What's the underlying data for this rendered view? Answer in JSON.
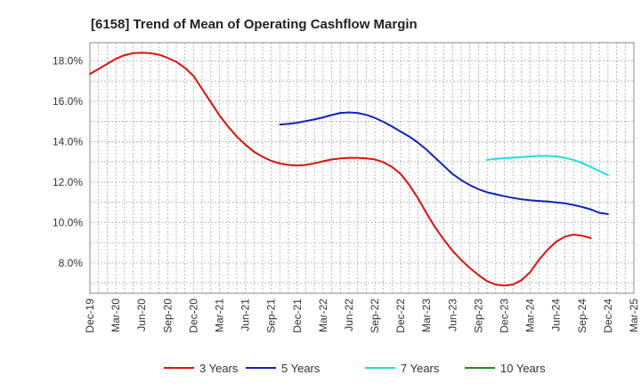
{
  "chart_data": {
    "type": "line",
    "title": "[6158]  Trend of Mean of Operating Cashflow Margin",
    "xlabel": "",
    "ylabel": "",
    "x_ticks": [
      "Dec-19",
      "Mar-20",
      "Jun-20",
      "Sep-20",
      "Dec-20",
      "Mar-21",
      "Jun-21",
      "Sep-21",
      "Dec-21",
      "Mar-22",
      "Jun-22",
      "Sep-22",
      "Dec-22",
      "Mar-23",
      "Jun-23",
      "Sep-23",
      "Dec-23",
      "Mar-24",
      "Jun-24",
      "Sep-24",
      "Dec-24",
      "Mar-25"
    ],
    "y_ticks": [
      "8.0%",
      "10.0%",
      "12.0%",
      "14.0%",
      "16.0%",
      "18.0%"
    ],
    "ylim": [
      6.5,
      18.9
    ],
    "grid": true,
    "legend_position": "bottom",
    "series": [
      {
        "name": "3 Years",
        "color": "#dd1111",
        "points": [
          [
            "Dec-19",
            17.35
          ],
          [
            "Jan-20",
            17.6
          ],
          [
            "Feb-20",
            17.85
          ],
          [
            "Mar-20",
            18.1
          ],
          [
            "Apr-20",
            18.28
          ],
          [
            "May-20",
            18.38
          ],
          [
            "Jun-20",
            18.4
          ],
          [
            "Jul-20",
            18.38
          ],
          [
            "Aug-20",
            18.3
          ],
          [
            "Sep-20",
            18.15
          ],
          [
            "Oct-20",
            17.95
          ],
          [
            "Nov-20",
            17.65
          ],
          [
            "Dec-20",
            17.25
          ],
          [
            "Jan-21",
            16.6
          ],
          [
            "Feb-21",
            15.95
          ],
          [
            "Mar-21",
            15.3
          ],
          [
            "Apr-21",
            14.75
          ],
          [
            "May-21",
            14.25
          ],
          [
            "Jun-21",
            13.85
          ],
          [
            "Jul-21",
            13.5
          ],
          [
            "Aug-21",
            13.25
          ],
          [
            "Sep-21",
            13.05
          ],
          [
            "Oct-21",
            12.92
          ],
          [
            "Nov-21",
            12.85
          ],
          [
            "Dec-21",
            12.82
          ],
          [
            "Jan-22",
            12.85
          ],
          [
            "Feb-22",
            12.93
          ],
          [
            "Mar-22",
            13.03
          ],
          [
            "Apr-22",
            13.12
          ],
          [
            "May-22",
            13.17
          ],
          [
            "Jun-22",
            13.2
          ],
          [
            "Jul-22",
            13.2
          ],
          [
            "Aug-22",
            13.17
          ],
          [
            "Sep-22",
            13.12
          ],
          [
            "Oct-22",
            12.98
          ],
          [
            "Nov-22",
            12.75
          ],
          [
            "Dec-22",
            12.4
          ],
          [
            "Jan-23",
            11.85
          ],
          [
            "Feb-23",
            11.2
          ],
          [
            "Mar-23",
            10.45
          ],
          [
            "Apr-23",
            9.75
          ],
          [
            "May-23",
            9.15
          ],
          [
            "Jun-23",
            8.6
          ],
          [
            "Jul-23",
            8.15
          ],
          [
            "Aug-23",
            7.75
          ],
          [
            "Sep-23",
            7.4
          ],
          [
            "Oct-23",
            7.1
          ],
          [
            "Nov-23",
            6.93
          ],
          [
            "Dec-23",
            6.88
          ],
          [
            "Jan-24",
            6.93
          ],
          [
            "Feb-24",
            7.15
          ],
          [
            "Mar-24",
            7.55
          ],
          [
            "Apr-24",
            8.15
          ],
          [
            "May-24",
            8.65
          ],
          [
            "Jun-24",
            9.05
          ],
          [
            "Jul-24",
            9.3
          ],
          [
            "Aug-24",
            9.4
          ],
          [
            "Sep-24",
            9.35
          ],
          [
            "Oct-24",
            9.23
          ]
        ]
      },
      {
        "name": "5 Years",
        "color": "#1122bb",
        "points": [
          [
            "Oct-21",
            14.85
          ],
          [
            "Nov-21",
            14.88
          ],
          [
            "Dec-21",
            14.94
          ],
          [
            "Jan-22",
            15.02
          ],
          [
            "Feb-22",
            15.1
          ],
          [
            "Mar-22",
            15.2
          ],
          [
            "Apr-22",
            15.32
          ],
          [
            "May-22",
            15.42
          ],
          [
            "Jun-22",
            15.45
          ],
          [
            "Jul-22",
            15.42
          ],
          [
            "Aug-22",
            15.33
          ],
          [
            "Sep-22",
            15.18
          ],
          [
            "Oct-22",
            14.98
          ],
          [
            "Nov-22",
            14.75
          ],
          [
            "Dec-22",
            14.5
          ],
          [
            "Jan-23",
            14.25
          ],
          [
            "Feb-23",
            13.95
          ],
          [
            "Mar-23",
            13.6
          ],
          [
            "Apr-23",
            13.2
          ],
          [
            "May-23",
            12.8
          ],
          [
            "Jun-23",
            12.4
          ],
          [
            "Jul-23",
            12.1
          ],
          [
            "Aug-23",
            11.85
          ],
          [
            "Sep-23",
            11.65
          ],
          [
            "Oct-23",
            11.5
          ],
          [
            "Nov-23",
            11.4
          ],
          [
            "Dec-23",
            11.3
          ],
          [
            "Jan-24",
            11.22
          ],
          [
            "Feb-24",
            11.15
          ],
          [
            "Mar-24",
            11.1
          ],
          [
            "Apr-24",
            11.07
          ],
          [
            "May-24",
            11.04
          ],
          [
            "Jun-24",
            11.0
          ],
          [
            "Jul-24",
            10.95
          ],
          [
            "Aug-24",
            10.87
          ],
          [
            "Sep-24",
            10.77
          ],
          [
            "Oct-24",
            10.65
          ],
          [
            "Nov-24",
            10.48
          ],
          [
            "Dec-24",
            10.42
          ]
        ]
      },
      {
        "name": "7 Years",
        "color": "#22dddd",
        "points": [
          [
            "Oct-23",
            13.1
          ],
          [
            "Nov-23",
            13.15
          ],
          [
            "Dec-23",
            13.18
          ],
          [
            "Jan-24",
            13.21
          ],
          [
            "Feb-24",
            13.24
          ],
          [
            "Mar-24",
            13.27
          ],
          [
            "Apr-24",
            13.3
          ],
          [
            "May-24",
            13.3
          ],
          [
            "Jun-24",
            13.27
          ],
          [
            "Jul-24",
            13.2
          ],
          [
            "Aug-24",
            13.1
          ],
          [
            "Sep-24",
            12.95
          ],
          [
            "Oct-24",
            12.75
          ],
          [
            "Nov-24",
            12.55
          ],
          [
            "Dec-24",
            12.35
          ]
        ]
      },
      {
        "name": "10 Years",
        "color": "#228822",
        "points": []
      }
    ]
  }
}
